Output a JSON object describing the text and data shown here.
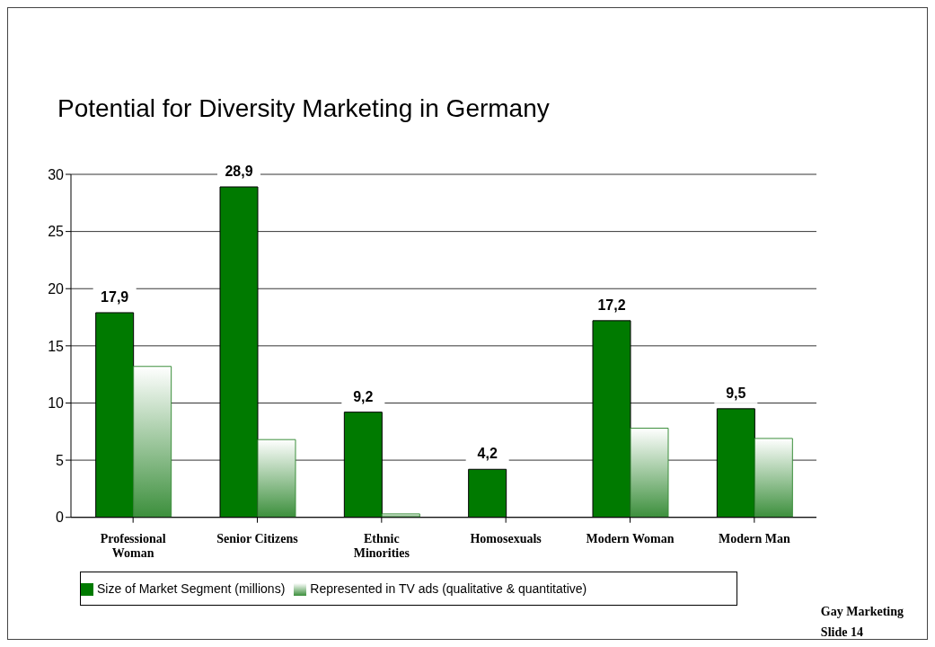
{
  "chart_data": {
    "type": "bar",
    "title": "Potential for Diversity Marketing in Germany",
    "categories": [
      "Professional Woman",
      "Senior Citizens",
      "Ethnic Minorities",
      "Homosexuals",
      "Modern Woman",
      "Modern Man"
    ],
    "series": [
      {
        "name": "Size of Market Segment (millions)",
        "color": "#007a00",
        "values": [
          17.9,
          28.9,
          9.2,
          4.2,
          17.2,
          9.5
        ],
        "value_labels": [
          "17,9",
          "28,9",
          "9,2",
          "4,2",
          "17,2",
          "9,5"
        ]
      },
      {
        "name": "Represented in TV ads (qualitative & quantitative)",
        "color": "#3c8f3c",
        "values": [
          13.2,
          6.8,
          0.3,
          0,
          7.8,
          6.9
        ]
      }
    ],
    "ylim": [
      0,
      30
    ],
    "yticks": [
      0,
      5,
      10,
      15,
      20,
      25,
      30
    ],
    "grid": "y",
    "legend": "bottom",
    "annotations": [
      "Gay Marketing",
      "Slide 14"
    ]
  }
}
